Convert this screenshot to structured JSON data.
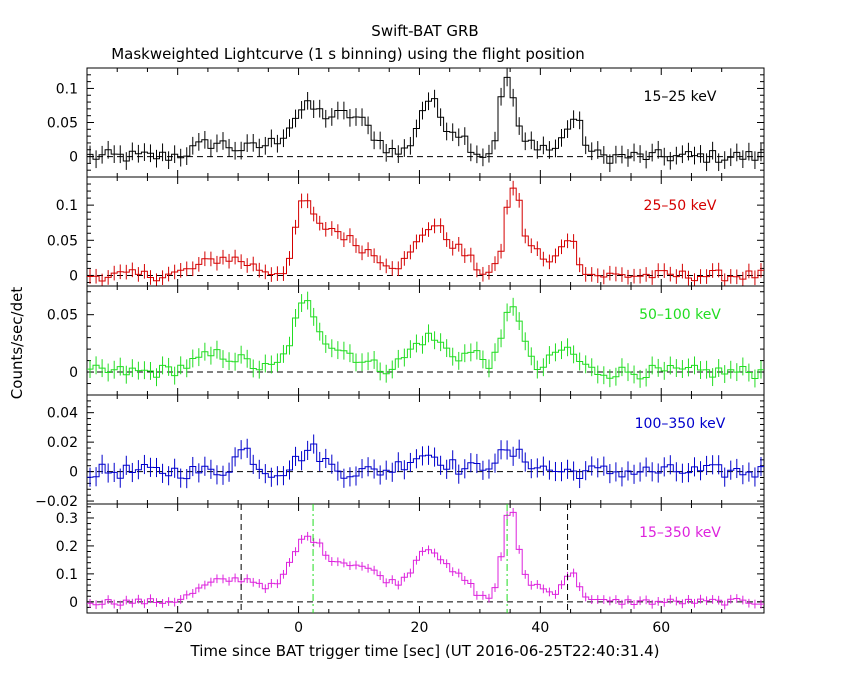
{
  "title": "Swift-BAT GRB",
  "subtitle": "Maskweighted Lightcurve (1 s binning) using the flight position",
  "xlabel": "Time since BAT trigger time [sec] (UT 2016-06-25T22:40:31.4)",
  "ylabel": "Counts/sec/det",
  "chart_data": {
    "type": "line",
    "xlim": [
      -35,
      77
    ],
    "x_ticks": [
      -20,
      0,
      20,
      40,
      60
    ],
    "x_tick_labels": [
      "−20",
      "0",
      "20",
      "40",
      "60"
    ],
    "markers": {
      "black_dashed": [
        -9.5,
        44.5
      ],
      "green_dashdot": [
        2.4,
        34.5
      ]
    },
    "panels": [
      {
        "label": "15–25 keV",
        "color": "#000000",
        "ylim": [
          -0.03,
          0.13
        ],
        "y_ticks": [
          0,
          0.05,
          0.1
        ],
        "y_tick_labels": [
          "0",
          "0.05",
          "0.1"
        ],
        "peaks": [
          [
            -14,
            0.02,
            3
          ],
          [
            -5,
            0.015,
            3
          ],
          [
            1,
            0.06,
            2.5
          ],
          [
            6,
            0.035,
            3
          ],
          [
            10,
            0.04,
            3
          ],
          [
            21.5,
            0.08,
            1.8
          ],
          [
            26,
            0.035,
            2
          ],
          [
            34.5,
            0.115,
            1.2
          ],
          [
            39,
            0.02,
            2
          ],
          [
            45.5,
            0.055,
            1.5
          ]
        ],
        "noise": 0.01
      },
      {
        "label": "25–50 keV",
        "color": "#d40000",
        "ylim": [
          -0.015,
          0.14
        ],
        "y_ticks": [
          0,
          0.05,
          0.1
        ],
        "y_tick_labels": [
          "0",
          "0.05",
          "0.1"
        ],
        "peaks": [
          [
            -12,
            0.025,
            4
          ],
          [
            0.8,
            0.075,
            1.2
          ],
          [
            4,
            0.055,
            3
          ],
          [
            10,
            0.035,
            4
          ],
          [
            22,
            0.07,
            2.5
          ],
          [
            27,
            0.025,
            2
          ],
          [
            35.5,
            0.125,
            1.3
          ],
          [
            39,
            0.035,
            1.5
          ],
          [
            44.5,
            0.055,
            1.5
          ]
        ],
        "noise": 0.008
      },
      {
        "label": "50–100 keV",
        "color": "#22dd22",
        "ylim": [
          -0.02,
          0.075
        ],
        "y_ticks": [
          0,
          0.05
        ],
        "y_tick_labels": [
          "0",
          "0.05"
        ],
        "peaks": [
          [
            -13,
            0.015,
            4
          ],
          [
            1,
            0.05,
            2
          ],
          [
            6,
            0.02,
            4
          ],
          [
            21.5,
            0.03,
            3
          ],
          [
            29,
            0.015,
            2
          ],
          [
            35.5,
            0.06,
            1.5
          ],
          [
            44,
            0.02,
            2
          ]
        ],
        "noise": 0.006
      },
      {
        "label": "100–350 keV",
        "color": "#0000cc",
        "ylim": [
          -0.022,
          0.052
        ],
        "y_ticks": [
          -0.02,
          0,
          0.02,
          0.04
        ],
        "y_tick_labels": [
          "−0.02",
          "0",
          "0.02",
          "0.04"
        ],
        "peaks": [
          [
            -9,
            0.015,
            1.5
          ],
          [
            2,
            0.015,
            2
          ],
          [
            21,
            0.012,
            3
          ],
          [
            35,
            0.012,
            3
          ]
        ],
        "noise": 0.005
      },
      {
        "label": "15–350 keV",
        "color": "#dd22dd",
        "ylim": [
          -0.04,
          0.35
        ],
        "y_ticks": [
          0,
          0.1,
          0.2,
          0.3
        ],
        "y_tick_labels": [
          "0",
          "0.1",
          "0.2",
          "0.3"
        ],
        "peaks": [
          [
            -14,
            0.06,
            3
          ],
          [
            -8,
            0.07,
            3
          ],
          [
            1,
            0.18,
            2.5
          ],
          [
            6,
            0.1,
            4
          ],
          [
            12,
            0.08,
            4
          ],
          [
            21.5,
            0.19,
            2.5
          ],
          [
            27,
            0.07,
            2
          ],
          [
            35,
            0.32,
            1.3
          ],
          [
            39,
            0.06,
            2
          ],
          [
            45,
            0.1,
            1.5
          ]
        ],
        "noise": 0.012
      }
    ]
  }
}
